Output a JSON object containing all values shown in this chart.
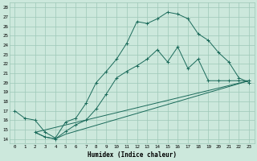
{
  "xlabel": "Humidex (Indice chaleur)",
  "xlim": [
    -0.5,
    23.5
  ],
  "ylim": [
    13.5,
    28.5
  ],
  "xticks": [
    0,
    1,
    2,
    3,
    4,
    5,
    6,
    7,
    8,
    9,
    10,
    11,
    12,
    13,
    14,
    15,
    16,
    17,
    18,
    19,
    20,
    21,
    22,
    23
  ],
  "yticks": [
    14,
    15,
    16,
    17,
    18,
    19,
    20,
    21,
    22,
    23,
    24,
    25,
    26,
    27,
    28
  ],
  "bg_color": "#cce8dc",
  "grid_color": "#9dc8b8",
  "line_color": "#1a6a5a",
  "line1_x": [
    0,
    1,
    2,
    3,
    4,
    5,
    6,
    7,
    8,
    9,
    10,
    11,
    12,
    13,
    14,
    15,
    16,
    17,
    18,
    19,
    20,
    21,
    22,
    23
  ],
  "line1_y": [
    17.0,
    16.2,
    16.0,
    14.7,
    14.1,
    15.8,
    16.2,
    17.8,
    20.0,
    21.2,
    22.5,
    24.2,
    26.5,
    26.3,
    26.8,
    27.5,
    27.3,
    26.8,
    25.2,
    24.5,
    23.2,
    22.2,
    20.5,
    20.0
  ],
  "line2_x": [
    2,
    3,
    4,
    5,
    6,
    7,
    8,
    9,
    10,
    11,
    12,
    13,
    14,
    15,
    16,
    17,
    18,
    19,
    20,
    21,
    22,
    23
  ],
  "line2_y": [
    14.7,
    14.2,
    14.0,
    14.8,
    15.5,
    16.0,
    17.2,
    18.8,
    20.5,
    21.2,
    21.8,
    22.5,
    23.5,
    22.2,
    23.8,
    21.5,
    22.5,
    20.2,
    20.2,
    20.2,
    20.2,
    20.2
  ],
  "line3_x": [
    2,
    3,
    4,
    5,
    23
  ],
  "line3_y": [
    14.7,
    14.2,
    14.0,
    14.5,
    20.2
  ],
  "line4_x": [
    2,
    23
  ],
  "line4_y": [
    14.7,
    20.2
  ]
}
